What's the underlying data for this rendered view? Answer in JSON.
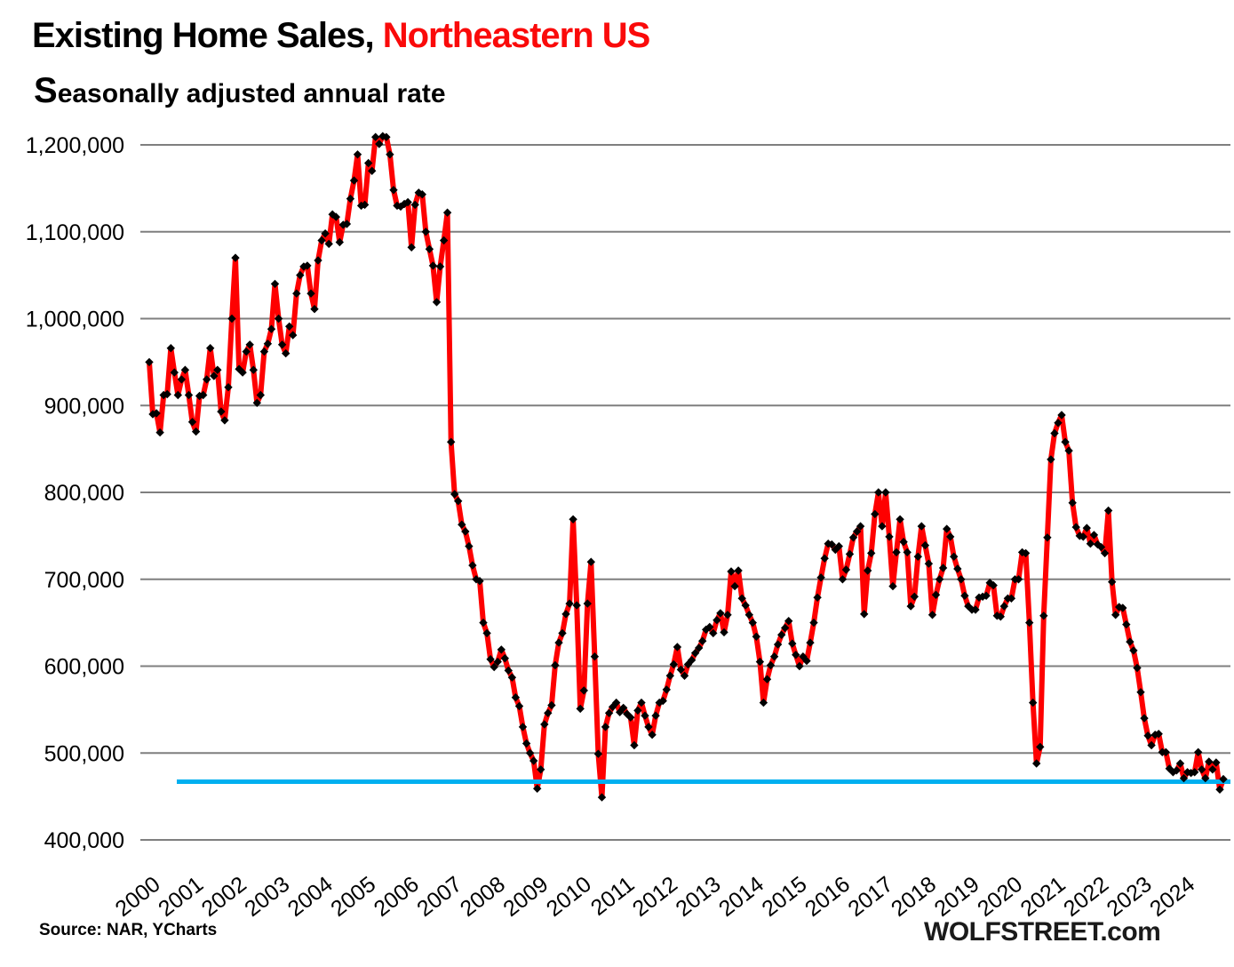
{
  "header": {
    "title_black": "Existing Home Sales, ",
    "title_red": "Northeastern US",
    "subtitle": "Seasonally adjusted annual rate"
  },
  "footer": {
    "source": "Source: NAR, YCharts",
    "branding": "WOLFSTREET.com"
  },
  "colors": {
    "series_red": "#fe0000",
    "marker_black": "#000000",
    "reference_cyan": "#00b0f0",
    "grid_gray": "#7f7f7f",
    "text_black": "#000000"
  },
  "chart_data": {
    "type": "line",
    "title": "Existing Home Sales, Northeastern US",
    "subtitle": "Seasonally adjusted annual rate",
    "frequency": "monthly",
    "x_start": "2000-01",
    "x_end": "2024-12",
    "ylim": [
      400000,
      1200000
    ],
    "y_ticks": [
      400000,
      500000,
      600000,
      700000,
      800000,
      900000,
      1000000,
      1100000,
      1200000
    ],
    "x_tick_years": [
      2000,
      2001,
      2002,
      2003,
      2004,
      2005,
      2006,
      2007,
      2008,
      2009,
      2010,
      2011,
      2012,
      2013,
      2014,
      2015,
      2016,
      2017,
      2018,
      2019,
      2020,
      2021,
      2022,
      2023,
      2024
    ],
    "grid": "horizontal",
    "legend": "none",
    "reference_line": {
      "value": 467000,
      "color": "#00b0f0"
    },
    "series": [
      {
        "name": "Existing home sales, Northeastern US, seasonally adjusted annual rate",
        "color": "#fe0000",
        "marker": "black-diamond",
        "values": [
          950000,
          890000,
          891000,
          869000,
          912000,
          913000,
          966000,
          938000,
          912000,
          930000,
          941000,
          912000,
          881000,
          870000,
          911000,
          912000,
          930000,
          966000,
          934000,
          941000,
          893000,
          883000,
          921000,
          1000000,
          1070000,
          942000,
          938000,
          962000,
          970000,
          941000,
          903000,
          912000,
          962000,
          971000,
          988000,
          1040000,
          1000000,
          970000,
          960000,
          991000,
          981000,
          1029000,
          1050000,
          1060000,
          1061000,
          1029000,
          1011000,
          1067000,
          1090000,
          1098000,
          1086000,
          1120000,
          1117000,
          1088000,
          1108000,
          1109000,
          1138000,
          1159000,
          1189000,
          1130000,
          1131000,
          1179000,
          1170000,
          1209000,
          1201000,
          1210000,
          1209000,
          1189000,
          1148000,
          1130000,
          1129000,
          1132000,
          1134000,
          1082000,
          1131000,
          1145000,
          1143000,
          1100000,
          1080000,
          1061000,
          1019000,
          1060000,
          1090000,
          1122000,
          858000,
          798000,
          790000,
          763000,
          755000,
          738000,
          716000,
          700000,
          698000,
          650000,
          638000,
          608000,
          599000,
          605000,
          619000,
          609000,
          595000,
          587000,
          564000,
          554000,
          530000,
          511000,
          500000,
          491000,
          459000,
          481000,
          533000,
          546000,
          555000,
          601000,
          627000,
          638000,
          660000,
          672000,
          769000,
          670000,
          551000,
          572000,
          672000,
          720000,
          611000,
          499000,
          449000,
          530000,
          546000,
          553000,
          558000,
          547000,
          552000,
          545000,
          541000,
          509000,
          549000,
          558000,
          543000,
          530000,
          521000,
          543000,
          558000,
          560000,
          573000,
          589000,
          602000,
          622000,
          596000,
          589000,
          602000,
          607000,
          615000,
          621000,
          629000,
          642000,
          645000,
          638000,
          653000,
          661000,
          639000,
          659000,
          709000,
          692000,
          710000,
          678000,
          670000,
          659000,
          650000,
          634000,
          605000,
          558000,
          585000,
          601000,
          611000,
          625000,
          636000,
          644000,
          652000,
          626000,
          613000,
          600000,
          611000,
          606000,
          627000,
          650000,
          679000,
          702000,
          724000,
          741000,
          740000,
          734000,
          738000,
          700000,
          711000,
          729000,
          748000,
          755000,
          761000,
          660000,
          710000,
          730000,
          775000,
          800000,
          761000,
          800000,
          749000,
          692000,
          731000,
          769000,
          743000,
          731000,
          669000,
          680000,
          726000,
          761000,
          739000,
          718000,
          659000,
          682000,
          700000,
          713000,
          758000,
          749000,
          726000,
          712000,
          700000,
          681000,
          669000,
          665000,
          665000,
          679000,
          680000,
          681000,
          696000,
          693000,
          658000,
          657000,
          669000,
          678000,
          678000,
          700000,
          700000,
          731000,
          730000,
          650000,
          558000,
          488000,
          507000,
          658000,
          748000,
          838000,
          868000,
          880000,
          889000,
          858000,
          848000,
          788000,
          760000,
          750000,
          749000,
          759000,
          741000,
          751000,
          740000,
          737000,
          730000,
          779000,
          697000,
          659000,
          668000,
          667000,
          648000,
          628000,
          618000,
          598000,
          570000,
          540000,
          520000,
          509000,
          521000,
          522000,
          501000,
          501000,
          482000,
          478000,
          480000,
          488000,
          471000,
          478000,
          477000,
          478000,
          501000,
          481000,
          471000,
          490000,
          481000,
          489000,
          458000,
          470000
        ]
      }
    ]
  }
}
